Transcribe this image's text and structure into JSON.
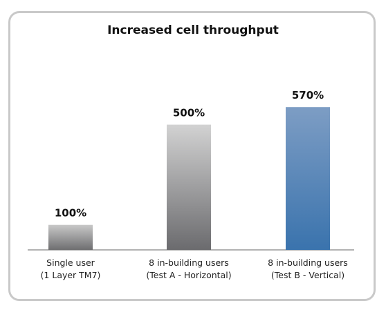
{
  "chart_data": {
    "type": "bar",
    "title": "Increased cell throughput",
    "xlabel": "",
    "ylabel": "",
    "ylim": [
      0,
      700
    ],
    "categories": [
      [
        "Single user",
        "(1 Layer TM7)"
      ],
      [
        "8 in-building users",
        "(Test A - Horizontal)"
      ],
      [
        "8 in-building users",
        "(Test B - Vertical)"
      ]
    ],
    "values": [
      100,
      500,
      570
    ],
    "value_labels": [
      "100%",
      "500%",
      "570%"
    ],
    "bar_colors": [
      {
        "top": "#c8c8c8",
        "bottom": "#6e6e70"
      },
      {
        "top": "#d2d2d2",
        "bottom": "#6b6b6e"
      },
      {
        "top": "#7d9dc4",
        "bottom": "#3a73ad"
      }
    ],
    "grid": false,
    "legend": "none"
  }
}
